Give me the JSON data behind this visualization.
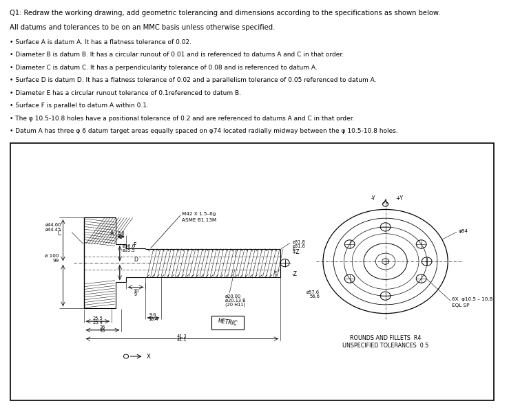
{
  "title_lines": [
    "Q1: Redraw the working drawing, add geometric tolerancing and dimensions according to the specifications as shown below.",
    "All datums and tolerances to be on an MMC basis unless otherwise specified.",
    "• Surface A is datum A. It has a flatness tolerance of 0.02.",
    "• Diameter B is datum B. It has a circular runout of 0.01 and is referenced to datums A and C in that order.",
    "• Diameter C is datum C. It has a perpendicularity tolerance of 0.08 and is referenced to datum A.",
    "• Surface D is datum D. It has a flatness tolerance of 0.02 and a parallelism tolerance of 0.05 referenced to datum A.",
    "• Diameter E has a circular runout tolerance of 0.1referenced to datum B.",
    "• Surface F is parallel to datum A within 0.1.",
    "• The φ 10.5-10.8 holes have a positional tolerance of 0.2 and are referenced to datums A and C in that order.",
    "• Datum A has three φ 6 datum target areas equally spaced on φ74 located radially midway between the φ 10.5-10.8 holes."
  ],
  "bg_color": "#ffffff"
}
